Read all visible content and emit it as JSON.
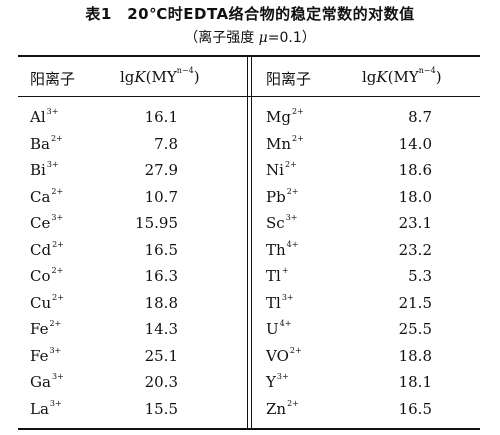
{
  "title": "表1　20℃时EDTA络合物的稳定常数的对数值",
  "subtitle_prefix": "（离子强度 ",
  "subtitle_mu": "μ",
  "subtitle_suffix": "=0.1）",
  "header": {
    "ion_label": "阳离子",
    "lg_prefix": "lg",
    "lg_K": "K",
    "lg_MY": "(MY",
    "lg_charge": "n−4",
    "lg_close": ")"
  },
  "left_rows": [
    {
      "symbol": "Al",
      "charge": "3+",
      "value": "16.1"
    },
    {
      "symbol": "Ba",
      "charge": "2+",
      "value": "7.8"
    },
    {
      "symbol": "Bi",
      "charge": "3+",
      "value": "27.9"
    },
    {
      "symbol": "Ca",
      "charge": "2+",
      "value": "10.7"
    },
    {
      "symbol": "Ce",
      "charge": "3+",
      "value": "15.95"
    },
    {
      "symbol": "Cd",
      "charge": "2+",
      "value": "16.5"
    },
    {
      "symbol": "Co",
      "charge": "2+",
      "value": "16.3"
    },
    {
      "symbol": "Cu",
      "charge": "2+",
      "value": "18.8"
    },
    {
      "symbol": "Fe",
      "charge": "2+",
      "value": "14.3"
    },
    {
      "symbol": "Fe",
      "charge": "3+",
      "value": "25.1"
    },
    {
      "symbol": "Ga",
      "charge": "3+",
      "value": "20.3"
    },
    {
      "symbol": "La",
      "charge": "3+",
      "value": "15.5"
    }
  ],
  "right_rows": [
    {
      "symbol": "Mg",
      "charge": "2+",
      "value": "8.7"
    },
    {
      "symbol": "Mn",
      "charge": "2+",
      "value": "14.0"
    },
    {
      "symbol": "Ni",
      "charge": "2+",
      "value": "18.6"
    },
    {
      "symbol": "Pb",
      "charge": "2+",
      "value": "18.0"
    },
    {
      "symbol": "Sc",
      "charge": "3+",
      "value": "23.1"
    },
    {
      "symbol": "Th",
      "charge": "4+",
      "value": "23.2"
    },
    {
      "symbol": "Tl",
      "charge": "+",
      "value": "5.3"
    },
    {
      "symbol": "Tl",
      "charge": "3+",
      "value": "21.5"
    },
    {
      "symbol": "U",
      "charge": "4+",
      "value": "25.5"
    },
    {
      "symbol": "VO",
      "charge": "2+",
      "value": "18.8"
    },
    {
      "symbol": "Y",
      "charge": "3+",
      "value": "18.1"
    },
    {
      "symbol": "Zn",
      "charge": "2+",
      "value": "16.5"
    }
  ]
}
